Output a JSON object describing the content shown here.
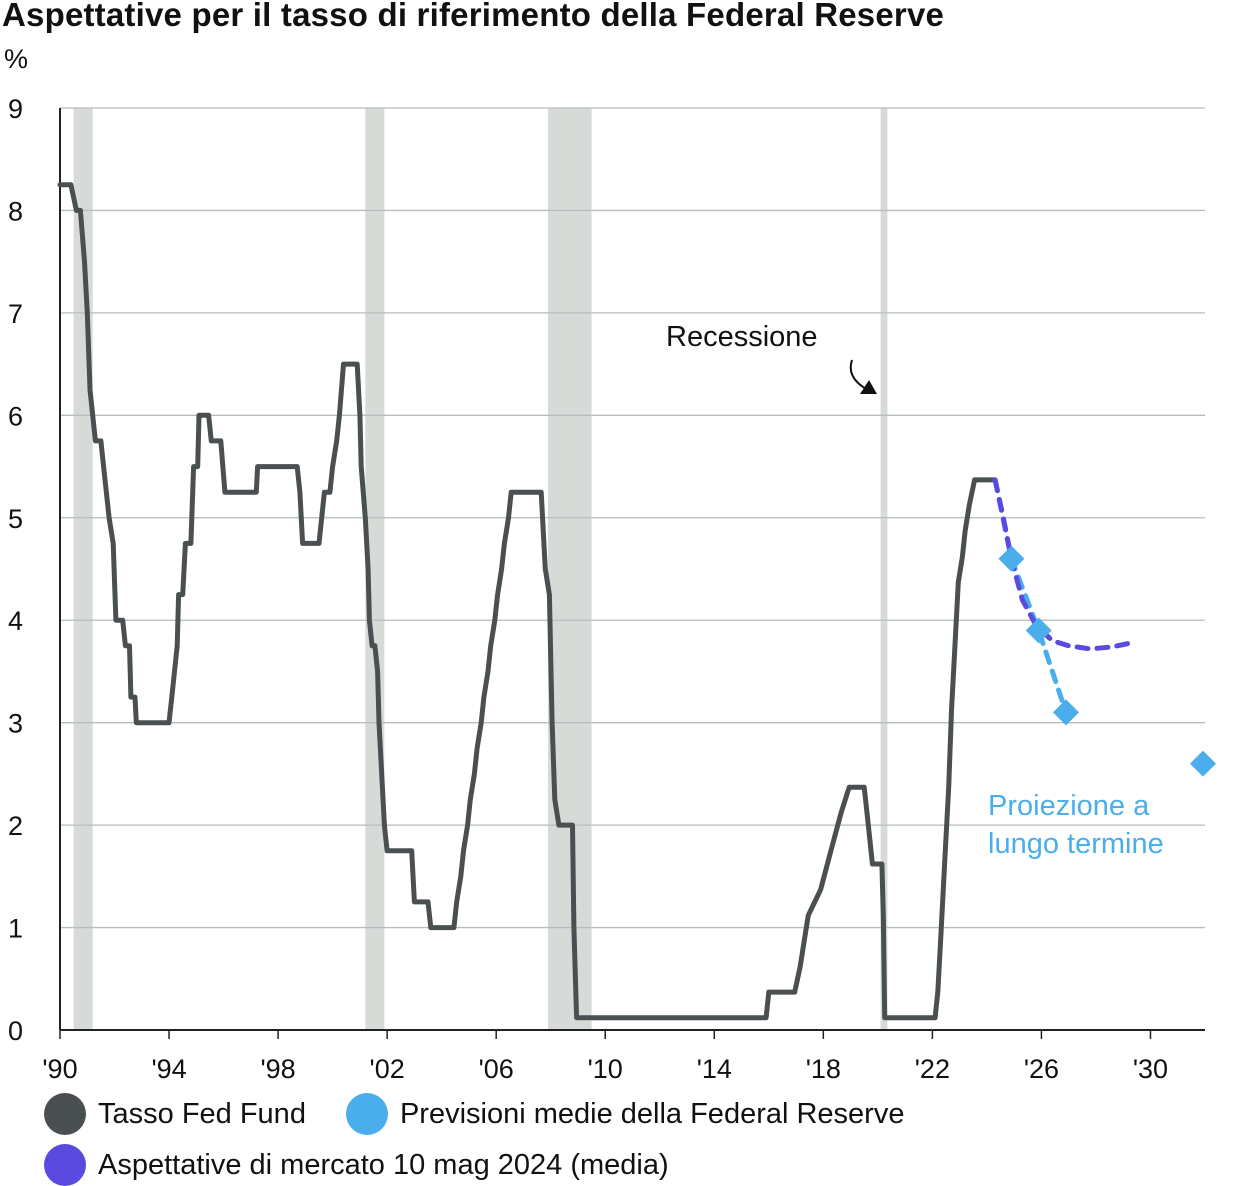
{
  "chart_data": {
    "type": "line",
    "title": "Aspettative per il tasso di riferimento della Federal Reserve",
    "unit_label": "%",
    "xlim": [
      1990,
      2032
    ],
    "ylim": [
      0,
      9
    ],
    "y_ticks": [
      "0",
      "1",
      "2",
      "3",
      "4",
      "5",
      "6",
      "7",
      "8",
      "9"
    ],
    "x_ticks": [
      {
        "value": 1990,
        "label": "'90"
      },
      {
        "value": 1994,
        "label": "'94"
      },
      {
        "value": 1998,
        "label": "'98"
      },
      {
        "value": 2002,
        "label": "'02"
      },
      {
        "value": 2006,
        "label": "'06"
      },
      {
        "value": 2010,
        "label": "'10"
      },
      {
        "value": 2014,
        "label": "'14"
      },
      {
        "value": 2018,
        "label": "'18"
      },
      {
        "value": 2022,
        "label": "'22"
      },
      {
        "value": 2026,
        "label": "'26"
      },
      {
        "value": 2030,
        "label": "'30"
      }
    ],
    "grid": "horizontal",
    "recessions": [
      {
        "start": 1990.5,
        "end": 1991.2
      },
      {
        "start": 2001.2,
        "end": 2001.9
      },
      {
        "start": 2007.9,
        "end": 2009.5
      },
      {
        "start": 2020.1,
        "end": 2020.35
      }
    ],
    "series": [
      {
        "name": "Tasso Fed Fund",
        "color": "#4a4f52",
        "style": "solid",
        "points": [
          [
            1990.0,
            8.25
          ],
          [
            1990.4,
            8.25
          ],
          [
            1990.6,
            8.0
          ],
          [
            1990.75,
            8.0
          ],
          [
            1990.9,
            7.5
          ],
          [
            1991.0,
            7.0
          ],
          [
            1991.1,
            6.25
          ],
          [
            1991.3,
            5.75
          ],
          [
            1991.5,
            5.75
          ],
          [
            1991.6,
            5.5
          ],
          [
            1991.8,
            5.0
          ],
          [
            1991.95,
            4.75
          ],
          [
            1992.05,
            4.0
          ],
          [
            1992.3,
            4.0
          ],
          [
            1992.4,
            3.75
          ],
          [
            1992.55,
            3.75
          ],
          [
            1992.6,
            3.25
          ],
          [
            1992.75,
            3.25
          ],
          [
            1992.8,
            3.0
          ],
          [
            1994.0,
            3.0
          ],
          [
            1994.1,
            3.25
          ],
          [
            1994.3,
            3.75
          ],
          [
            1994.35,
            4.25
          ],
          [
            1994.5,
            4.25
          ],
          [
            1994.6,
            4.75
          ],
          [
            1994.8,
            4.75
          ],
          [
            1994.9,
            5.5
          ],
          [
            1995.05,
            5.5
          ],
          [
            1995.1,
            6.0
          ],
          [
            1995.45,
            6.0
          ],
          [
            1995.55,
            5.75
          ],
          [
            1995.9,
            5.75
          ],
          [
            1996.05,
            5.25
          ],
          [
            1997.2,
            5.25
          ],
          [
            1997.25,
            5.5
          ],
          [
            1998.7,
            5.5
          ],
          [
            1998.8,
            5.25
          ],
          [
            1998.9,
            4.75
          ],
          [
            1999.5,
            4.75
          ],
          [
            1999.6,
            5.0
          ],
          [
            1999.7,
            5.25
          ],
          [
            1999.9,
            5.25
          ],
          [
            2000.0,
            5.5
          ],
          [
            2000.15,
            5.75
          ],
          [
            2000.25,
            6.0
          ],
          [
            2000.4,
            6.5
          ],
          [
            2000.9,
            6.5
          ],
          [
            2001.0,
            6.0
          ],
          [
            2001.05,
            5.5
          ],
          [
            2001.2,
            5.0
          ],
          [
            2001.3,
            4.5
          ],
          [
            2001.35,
            4.0
          ],
          [
            2001.45,
            3.75
          ],
          [
            2001.55,
            3.75
          ],
          [
            2001.65,
            3.5
          ],
          [
            2001.7,
            3.0
          ],
          [
            2001.8,
            2.5
          ],
          [
            2001.9,
            2.0
          ],
          [
            2002.0,
            1.75
          ],
          [
            2002.9,
            1.75
          ],
          [
            2003.0,
            1.25
          ],
          [
            2003.5,
            1.25
          ],
          [
            2003.6,
            1.0
          ],
          [
            2004.45,
            1.0
          ],
          [
            2004.55,
            1.25
          ],
          [
            2004.7,
            1.5
          ],
          [
            2004.8,
            1.75
          ],
          [
            2004.95,
            2.0
          ],
          [
            2005.05,
            2.25
          ],
          [
            2005.2,
            2.5
          ],
          [
            2005.3,
            2.75
          ],
          [
            2005.45,
            3.0
          ],
          [
            2005.55,
            3.25
          ],
          [
            2005.7,
            3.5
          ],
          [
            2005.8,
            3.75
          ],
          [
            2005.95,
            4.0
          ],
          [
            2006.05,
            4.25
          ],
          [
            2006.2,
            4.5
          ],
          [
            2006.3,
            4.75
          ],
          [
            2006.45,
            5.0
          ],
          [
            2006.55,
            5.25
          ],
          [
            2007.65,
            5.25
          ],
          [
            2007.75,
            4.75
          ],
          [
            2007.8,
            4.5
          ],
          [
            2007.95,
            4.25
          ],
          [
            2008.05,
            3.0
          ],
          [
            2008.15,
            2.25
          ],
          [
            2008.3,
            2.0
          ],
          [
            2008.8,
            2.0
          ],
          [
            2008.85,
            1.0
          ],
          [
            2008.95,
            0.12
          ],
          [
            2015.9,
            0.12
          ],
          [
            2016.0,
            0.37
          ],
          [
            2016.95,
            0.37
          ],
          [
            2017.15,
            0.62
          ],
          [
            2017.3,
            0.87
          ],
          [
            2017.45,
            1.12
          ],
          [
            2017.9,
            1.37
          ],
          [
            2018.15,
            1.62
          ],
          [
            2018.4,
            1.87
          ],
          [
            2018.65,
            2.12
          ],
          [
            2018.95,
            2.37
          ],
          [
            2019.5,
            2.37
          ],
          [
            2019.6,
            2.12
          ],
          [
            2019.7,
            1.87
          ],
          [
            2019.8,
            1.62
          ],
          [
            2020.15,
            1.62
          ],
          [
            2020.2,
            1.12
          ],
          [
            2020.25,
            0.12
          ],
          [
            2022.1,
            0.12
          ],
          [
            2022.2,
            0.37
          ],
          [
            2022.3,
            0.87
          ],
          [
            2022.45,
            1.62
          ],
          [
            2022.6,
            2.37
          ],
          [
            2022.7,
            3.12
          ],
          [
            2022.85,
            3.87
          ],
          [
            2022.95,
            4.37
          ],
          [
            2023.1,
            4.62
          ],
          [
            2023.2,
            4.87
          ],
          [
            2023.35,
            5.12
          ],
          [
            2023.55,
            5.37
          ],
          [
            2024.3,
            5.37
          ]
        ]
      },
      {
        "name": "Previsioni medie della Federal Reserve",
        "color": "#4aaeed",
        "style": "dashed",
        "points": [
          [
            2024.3,
            5.37
          ],
          [
            2024.9,
            4.6
          ],
          [
            2025.9,
            3.9
          ],
          [
            2026.9,
            3.1
          ]
        ]
      },
      {
        "name": "Aspettative di mercato 10 mag 2024 (media)",
        "color": "#5b4ae0",
        "style": "dashed",
        "points": [
          [
            2024.3,
            5.37
          ],
          [
            2024.6,
            5.0
          ],
          [
            2024.9,
            4.6
          ],
          [
            2025.3,
            4.2
          ],
          [
            2025.8,
            3.95
          ],
          [
            2026.4,
            3.8
          ],
          [
            2027.0,
            3.75
          ],
          [
            2027.8,
            3.72
          ],
          [
            2028.6,
            3.74
          ],
          [
            2029.3,
            3.78
          ]
        ]
      }
    ],
    "long_term_projection": {
      "x": 2032,
      "y": 2.6
    },
    "annotations": {
      "recession_label": "Recessione",
      "long_term_line1": "Proiezione a",
      "long_term_line2": "lungo termine"
    },
    "legend": [
      {
        "label": "Tasso Fed Fund",
        "color": "#4a4f52"
      },
      {
        "label": "Previsioni medie della Federal Reserve",
        "color": "#4aaeed"
      },
      {
        "label": "Aspettative di mercato 10 mag 2024 (media)",
        "color": "#5b4ae0"
      }
    ],
    "legend_position": "bottom"
  }
}
